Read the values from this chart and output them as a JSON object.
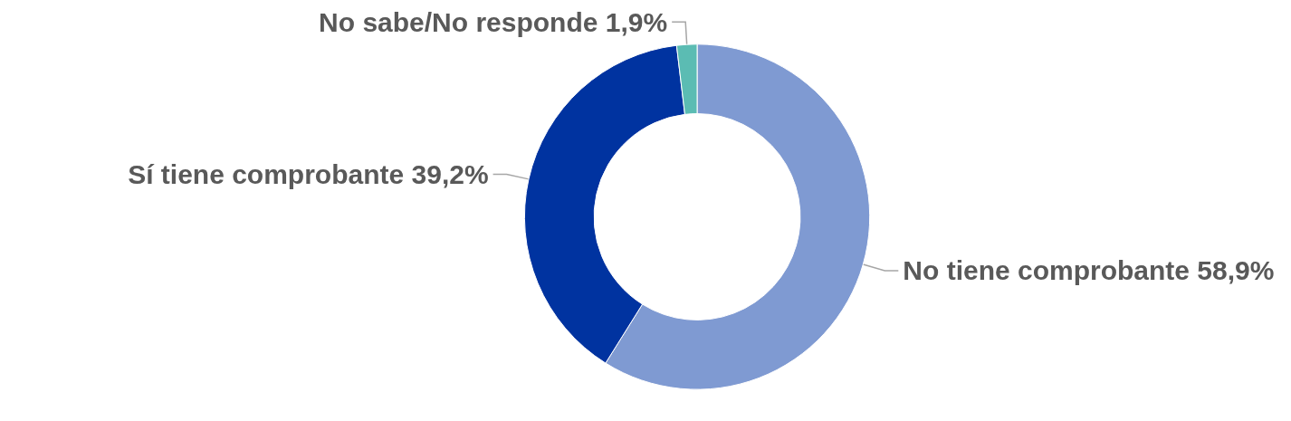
{
  "chart_data": {
    "type": "donut",
    "categories": [
      "No tiene comprobante",
      "Sí tiene comprobante",
      "No sabe/No responde"
    ],
    "values": [
      58.9,
      39.2,
      1.9
    ],
    "colors": [
      "#7f9ad2",
      "#0033a0",
      "#5bbcb3"
    ],
    "value_labels": [
      "58,9%",
      "39,2%",
      "1,9%"
    ]
  }
}
